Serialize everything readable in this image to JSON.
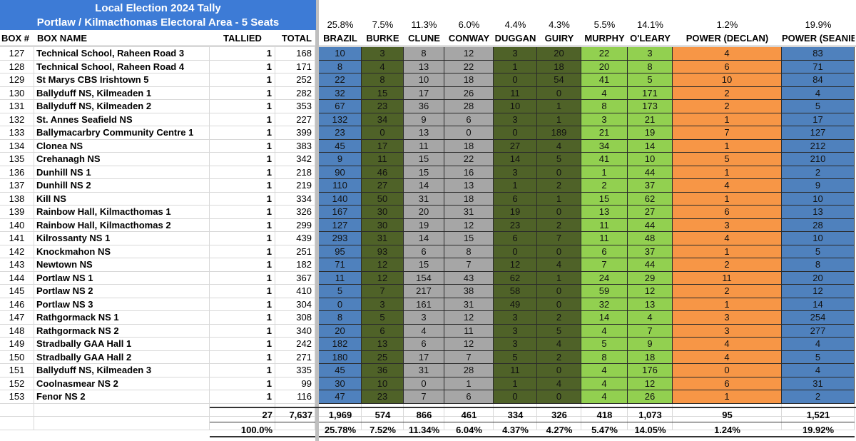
{
  "title": {
    "line1": "Local Election 2024 Tally",
    "line2": "Portlaw / Kilmacthomas Electoral Area - 5 Seats"
  },
  "headers": {
    "box": "BOX #",
    "name": "BOX NAME",
    "tallied": "TALLIED",
    "total": "TOTAL"
  },
  "candidates": [
    {
      "name": "BRAZIL",
      "pct": "25.8%",
      "color": "#4f81bd"
    },
    {
      "name": "BURKE",
      "pct": "7.5%",
      "color": "#4f6228"
    },
    {
      "name": "CLUNE",
      "pct": "11.3%",
      "color": "#a6a6a6"
    },
    {
      "name": "CONWAY",
      "pct": "6.0%",
      "color": "#a6a6a6"
    },
    {
      "name": "DUGGAN",
      "pct": "4.4%",
      "color": "#4f6228"
    },
    {
      "name": "GUIRY",
      "pct": "4.3%",
      "color": "#4f6228"
    },
    {
      "name": "MURPHY",
      "pct": "5.5%",
      "color": "#92d050"
    },
    {
      "name": "O'LEARY",
      "pct": "14.1%",
      "color": "#92d050"
    },
    {
      "name": "POWER (DECLAN)",
      "pct": "1.2%",
      "color": "#f79646"
    },
    {
      "name": "POWER (SEANIE)",
      "pct": "19.9%",
      "color": "#4f81bd"
    }
  ],
  "rows": [
    {
      "box": "127",
      "name": "Technical School, Raheen Road 3",
      "tallied": "1",
      "total": "168",
      "votes": [
        "10",
        "3",
        "8",
        "12",
        "3",
        "20",
        "22",
        "3",
        "4",
        "83"
      ]
    },
    {
      "box": "128",
      "name": "Technical School, Raheen Road 4",
      "tallied": "1",
      "total": "171",
      "votes": [
        "8",
        "4",
        "13",
        "22",
        "1",
        "18",
        "20",
        "8",
        "6",
        "71"
      ]
    },
    {
      "box": "129",
      "name": "St Marys CBS Irishtown 5",
      "tallied": "1",
      "total": "252",
      "votes": [
        "22",
        "8",
        "10",
        "18",
        "0",
        "54",
        "41",
        "5",
        "10",
        "84"
      ]
    },
    {
      "box": "130",
      "name": "Ballyduff NS, Kilmeaden 1",
      "tallied": "1",
      "total": "282",
      "votes": [
        "32",
        "15",
        "17",
        "26",
        "11",
        "0",
        "4",
        "171",
        "2",
        "4"
      ]
    },
    {
      "box": "131",
      "name": "Ballyduff NS, Kilmeaden 2",
      "tallied": "1",
      "total": "353",
      "votes": [
        "67",
        "23",
        "36",
        "28",
        "10",
        "1",
        "8",
        "173",
        "2",
        "5"
      ]
    },
    {
      "box": "132",
      "name": "St. Annes Seafield NS",
      "tallied": "1",
      "total": "227",
      "votes": [
        "132",
        "34",
        "9",
        "6",
        "3",
        "1",
        "3",
        "21",
        "1",
        "17"
      ]
    },
    {
      "box": "133",
      "name": "Ballymacarbry Community Centre 1",
      "tallied": "1",
      "total": "399",
      "votes": [
        "23",
        "0",
        "13",
        "0",
        "0",
        "189",
        "21",
        "19",
        "7",
        "127"
      ]
    },
    {
      "box": "134",
      "name": "Clonea NS",
      "tallied": "1",
      "total": "383",
      "votes": [
        "45",
        "17",
        "11",
        "18",
        "27",
        "4",
        "34",
        "14",
        "1",
        "212"
      ]
    },
    {
      "box": "135",
      "name": "Crehanagh NS",
      "tallied": "1",
      "total": "342",
      "votes": [
        "9",
        "11",
        "15",
        "22",
        "14",
        "5",
        "41",
        "10",
        "5",
        "210"
      ]
    },
    {
      "box": "136",
      "name": "Dunhill NS 1",
      "tallied": "1",
      "total": "218",
      "votes": [
        "90",
        "46",
        "15",
        "16",
        "3",
        "0",
        "1",
        "44",
        "1",
        "2"
      ]
    },
    {
      "box": "137",
      "name": "Dunhill NS 2",
      "tallied": "1",
      "total": "219",
      "votes": [
        "110",
        "27",
        "14",
        "13",
        "1",
        "2",
        "2",
        "37",
        "4",
        "9"
      ]
    },
    {
      "box": "138",
      "name": "Kill NS",
      "tallied": "1",
      "total": "334",
      "votes": [
        "140",
        "50",
        "31",
        "18",
        "6",
        "1",
        "15",
        "62",
        "1",
        "10"
      ]
    },
    {
      "box": "139",
      "name": "Rainbow Hall, Kilmacthomas 1",
      "tallied": "1",
      "total": "326",
      "votes": [
        "167",
        "30",
        "20",
        "31",
        "19",
        "0",
        "13",
        "27",
        "6",
        "13"
      ]
    },
    {
      "box": "140",
      "name": "Rainbow Hall, Kilmacthomas 2",
      "tallied": "1",
      "total": "299",
      "votes": [
        "127",
        "30",
        "19",
        "12",
        "23",
        "2",
        "11",
        "44",
        "3",
        "28"
      ]
    },
    {
      "box": "141",
      "name": "Kilrossanty NS 1",
      "tallied": "1",
      "total": "439",
      "votes": [
        "293",
        "31",
        "14",
        "15",
        "6",
        "7",
        "11",
        "48",
        "4",
        "10"
      ]
    },
    {
      "box": "142",
      "name": "Knockmahon NS",
      "tallied": "1",
      "total": "251",
      "votes": [
        "95",
        "93",
        "6",
        "8",
        "0",
        "0",
        "6",
        "37",
        "1",
        "5"
      ]
    },
    {
      "box": "143",
      "name": "Newtown NS",
      "tallied": "1",
      "total": "182",
      "votes": [
        "71",
        "12",
        "15",
        "7",
        "12",
        "4",
        "7",
        "44",
        "2",
        "8"
      ]
    },
    {
      "box": "144",
      "name": "Portlaw NS 1",
      "tallied": "1",
      "total": "367",
      "votes": [
        "11",
        "12",
        "154",
        "43",
        "62",
        "1",
        "24",
        "29",
        "11",
        "20"
      ]
    },
    {
      "box": "145",
      "name": "Portlaw NS 2",
      "tallied": "1",
      "total": "410",
      "votes": [
        "5",
        "7",
        "217",
        "38",
        "58",
        "0",
        "59",
        "12",
        "2",
        "12"
      ]
    },
    {
      "box": "146",
      "name": "Portlaw NS 3",
      "tallied": "1",
      "total": "304",
      "votes": [
        "0",
        "3",
        "161",
        "31",
        "49",
        "0",
        "32",
        "13",
        "1",
        "14"
      ]
    },
    {
      "box": "147",
      "name": "Rathgormack NS 1",
      "tallied": "1",
      "total": "308",
      "votes": [
        "8",
        "5",
        "3",
        "12",
        "3",
        "2",
        "14",
        "4",
        "3",
        "254"
      ]
    },
    {
      "box": "148",
      "name": "Rathgormack NS 2",
      "tallied": "1",
      "total": "340",
      "votes": [
        "20",
        "6",
        "4",
        "11",
        "3",
        "5",
        "4",
        "7",
        "3",
        "277"
      ]
    },
    {
      "box": "149",
      "name": "Stradbally GAA Hall 1",
      "tallied": "1",
      "total": "242",
      "votes": [
        "182",
        "13",
        "6",
        "12",
        "3",
        "4",
        "5",
        "9",
        "4",
        "4"
      ]
    },
    {
      "box": "150",
      "name": "Stradbally GAA Hall 2",
      "tallied": "1",
      "total": "271",
      "votes": [
        "180",
        "25",
        "17",
        "7",
        "5",
        "2",
        "8",
        "18",
        "4",
        "5"
      ]
    },
    {
      "box": "151",
      "name": "Ballyduff NS, Kilmeaden 3",
      "tallied": "1",
      "total": "335",
      "votes": [
        "45",
        "36",
        "31",
        "28",
        "11",
        "0",
        "4",
        "176",
        "0",
        "4"
      ]
    },
    {
      "box": "152",
      "name": "Coolnasmear NS 2",
      "tallied": "1",
      "total": "99",
      "votes": [
        "30",
        "10",
        "0",
        "1",
        "1",
        "4",
        "4",
        "12",
        "6",
        "31"
      ]
    },
    {
      "box": "153",
      "name": "Fenor NS 2",
      "tallied": "1",
      "total": "116",
      "votes": [
        "47",
        "23",
        "7",
        "6",
        "0",
        "0",
        "4",
        "26",
        "1",
        "2"
      ]
    }
  ],
  "totals": {
    "tallied": "27",
    "total": "7,637",
    "votes": [
      "1,969",
      "574",
      "866",
      "461",
      "334",
      "326",
      "418",
      "1,073",
      "95",
      "1,521"
    ]
  },
  "percents": {
    "tallied": "100.0%",
    "votes": [
      "25.78%",
      "7.52%",
      "11.34%",
      "6.04%",
      "4.37%",
      "4.27%",
      "5.47%",
      "14.05%",
      "1.24%",
      "19.92%"
    ]
  }
}
